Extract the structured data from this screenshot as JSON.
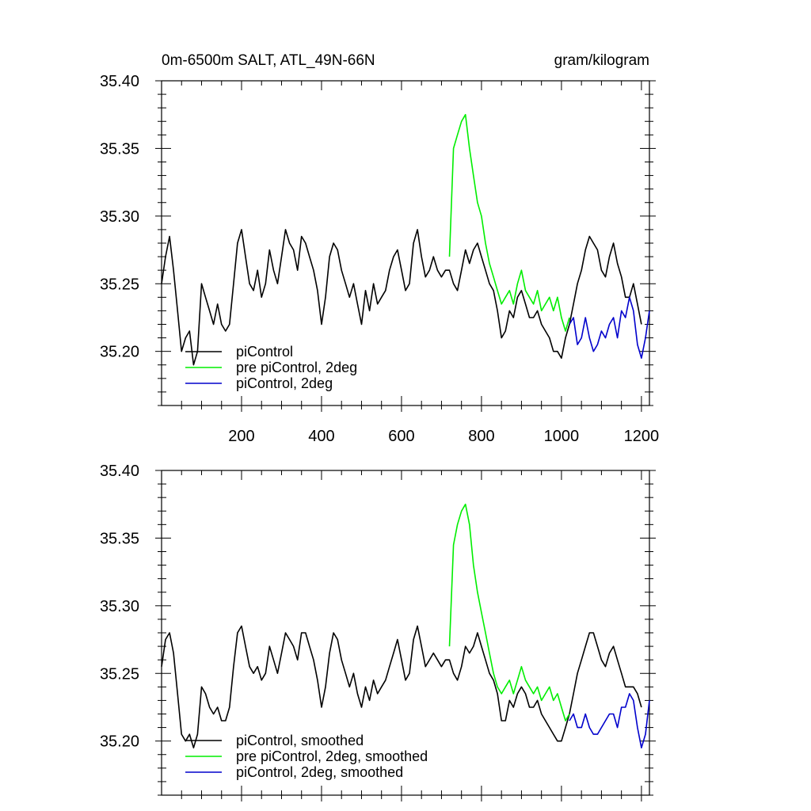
{
  "chart_data": [
    {
      "type": "line",
      "title_left": "0m-6500m SALT, ATL_49N-66N",
      "title_right": "gram/kilogram",
      "xlim": [
        0,
        1220
      ],
      "ylim": [
        35.16,
        35.4
      ],
      "xticks": [
        200,
        400,
        600,
        800,
        1000,
        1200
      ],
      "xtick_labels": [
        "200",
        "400",
        "600",
        "800",
        "1000",
        "1200"
      ],
      "yticks": [
        35.2,
        35.25,
        35.3,
        35.35,
        35.4
      ],
      "ytick_labels": [
        "35.20",
        "35.25",
        "35.30",
        "35.35",
        "35.40"
      ],
      "legend_position": "lower-left",
      "series": [
        {
          "name": "piControl",
          "color": "#000000",
          "x": [
            0,
            10,
            20,
            30,
            40,
            50,
            60,
            70,
            80,
            90,
            100,
            110,
            120,
            130,
            140,
            150,
            160,
            170,
            180,
            190,
            200,
            210,
            220,
            230,
            240,
            250,
            260,
            270,
            280,
            290,
            300,
            310,
            320,
            330,
            340,
            350,
            360,
            370,
            380,
            390,
            400,
            410,
            420,
            430,
            440,
            450,
            460,
            470,
            480,
            490,
            500,
            510,
            520,
            530,
            540,
            550,
            560,
            570,
            580,
            590,
            600,
            610,
            620,
            630,
            640,
            650,
            660,
            670,
            680,
            690,
            700,
            710,
            720,
            730,
            740,
            750,
            760,
            770,
            780,
            790,
            800,
            810,
            820,
            830,
            840,
            850,
            860,
            870,
            880,
            890,
            900,
            910,
            920,
            930,
            940,
            950,
            960,
            970,
            980,
            990,
            1000,
            1010,
            1020,
            1030,
            1040,
            1050,
            1060,
            1070,
            1080,
            1090,
            1100,
            1110,
            1120,
            1130,
            1140,
            1150,
            1160,
            1170,
            1180,
            1190,
            1200
          ],
          "y": [
            35.25,
            35.27,
            35.285,
            35.26,
            35.23,
            35.2,
            35.21,
            35.215,
            35.19,
            35.2,
            35.25,
            35.24,
            35.23,
            35.22,
            35.235,
            35.22,
            35.215,
            35.22,
            35.25,
            35.28,
            35.29,
            35.27,
            35.25,
            35.245,
            35.26,
            35.24,
            35.25,
            35.275,
            35.26,
            35.25,
            35.27,
            35.29,
            35.28,
            35.275,
            35.26,
            35.285,
            35.28,
            35.27,
            35.26,
            35.245,
            35.22,
            35.24,
            35.27,
            35.28,
            35.275,
            35.26,
            35.25,
            35.24,
            35.25,
            35.235,
            35.22,
            35.245,
            35.23,
            35.25,
            35.235,
            35.24,
            35.245,
            35.26,
            35.27,
            35.275,
            35.26,
            35.245,
            35.25,
            35.28,
            35.29,
            35.27,
            35.255,
            35.26,
            35.27,
            35.26,
            35.255,
            35.26,
            35.26,
            35.25,
            35.245,
            35.26,
            35.275,
            35.265,
            35.275,
            35.28,
            35.27,
            35.26,
            35.25,
            35.245,
            35.23,
            35.21,
            35.215,
            35.23,
            35.225,
            35.24,
            35.245,
            35.235,
            35.225,
            35.225,
            35.23,
            35.22,
            35.215,
            35.21,
            35.2,
            35.2,
            35.195,
            35.21,
            35.22,
            35.235,
            35.25,
            35.26,
            35.275,
            35.285,
            35.28,
            35.275,
            35.26,
            35.255,
            35.27,
            35.28,
            35.265,
            35.255,
            35.24,
            35.24,
            35.25,
            35.235,
            35.22
          ]
        },
        {
          "name": "pre piControl, 2deg",
          "color": "#00ee00",
          "x": [
            720,
            730,
            740,
            750,
            760,
            770,
            780,
            790,
            800,
            810,
            820,
            830,
            840,
            850,
            860,
            870,
            880,
            890,
            900,
            910,
            920,
            930,
            940,
            950,
            960,
            970,
            980,
            990,
            1000,
            1010,
            1020
          ],
          "y": [
            35.27,
            35.35,
            35.36,
            35.37,
            35.375,
            35.35,
            35.33,
            35.31,
            35.3,
            35.28,
            35.265,
            35.255,
            35.245,
            35.235,
            35.24,
            35.245,
            35.235,
            35.25,
            35.26,
            35.245,
            35.24,
            35.235,
            35.245,
            35.23,
            35.235,
            35.24,
            35.23,
            35.24,
            35.225,
            35.215,
            35.225
          ]
        },
        {
          "name": "piControl, 2deg",
          "color": "#0000cc",
          "x": [
            1020,
            1030,
            1040,
            1050,
            1060,
            1070,
            1080,
            1090,
            1100,
            1110,
            1120,
            1130,
            1140,
            1150,
            1160,
            1170,
            1180,
            1190,
            1200,
            1210,
            1220
          ],
          "y": [
            35.22,
            35.225,
            35.205,
            35.21,
            35.225,
            35.21,
            35.2,
            35.205,
            35.215,
            35.21,
            35.22,
            35.225,
            35.21,
            35.23,
            35.225,
            35.24,
            35.23,
            35.205,
            35.195,
            35.21,
            35.23
          ]
        }
      ]
    },
    {
      "type": "line",
      "xlim": [
        0,
        1220
      ],
      "ylim": [
        35.16,
        35.4
      ],
      "xticks": [
        200,
        400,
        600,
        800,
        1000,
        1200
      ],
      "yticks": [
        35.2,
        35.25,
        35.3,
        35.35,
        35.4
      ],
      "ytick_labels": [
        "35.20",
        "35.25",
        "35.30",
        "35.35",
        "35.40"
      ],
      "legend_position": "lower-left",
      "series": [
        {
          "name": "piControl, smoothed",
          "color": "#000000",
          "x": [
            0,
            10,
            20,
            30,
            40,
            50,
            60,
            70,
            80,
            90,
            100,
            110,
            120,
            130,
            140,
            150,
            160,
            170,
            180,
            190,
            200,
            210,
            220,
            230,
            240,
            250,
            260,
            270,
            280,
            290,
            300,
            310,
            320,
            330,
            340,
            350,
            360,
            370,
            380,
            390,
            400,
            410,
            420,
            430,
            440,
            450,
            460,
            470,
            480,
            490,
            500,
            510,
            520,
            530,
            540,
            550,
            560,
            570,
            580,
            590,
            600,
            610,
            620,
            630,
            640,
            650,
            660,
            670,
            680,
            690,
            700,
            710,
            720,
            730,
            740,
            750,
            760,
            770,
            780,
            790,
            800,
            810,
            820,
            830,
            840,
            850,
            860,
            870,
            880,
            890,
            900,
            910,
            920,
            930,
            940,
            950,
            960,
            970,
            980,
            990,
            1000,
            1010,
            1020,
            1030,
            1040,
            1050,
            1060,
            1070,
            1080,
            1090,
            1100,
            1110,
            1120,
            1130,
            1140,
            1150,
            1160,
            1170,
            1180,
            1190,
            1200
          ],
          "y": [
            35.255,
            35.275,
            35.28,
            35.265,
            35.235,
            35.205,
            35.2,
            35.205,
            35.195,
            35.205,
            35.24,
            35.235,
            35.225,
            35.22,
            35.225,
            35.215,
            35.215,
            35.225,
            35.255,
            35.28,
            35.285,
            35.27,
            35.255,
            35.25,
            35.255,
            35.245,
            35.25,
            35.27,
            35.26,
            35.25,
            35.265,
            35.28,
            35.275,
            35.27,
            35.26,
            35.28,
            35.28,
            35.27,
            35.26,
            35.245,
            35.225,
            35.24,
            35.265,
            35.28,
            35.275,
            35.26,
            35.25,
            35.24,
            35.25,
            35.235,
            35.225,
            35.24,
            35.23,
            35.245,
            35.235,
            35.24,
            35.245,
            35.255,
            35.265,
            35.275,
            35.26,
            35.245,
            35.25,
            35.275,
            35.285,
            35.27,
            35.255,
            35.26,
            35.265,
            35.26,
            35.255,
            35.26,
            35.26,
            35.25,
            35.245,
            35.255,
            35.27,
            35.265,
            35.27,
            35.28,
            35.27,
            35.26,
            35.25,
            35.245,
            35.235,
            35.215,
            35.215,
            35.23,
            35.225,
            35.235,
            35.24,
            35.235,
            35.225,
            35.225,
            35.23,
            35.22,
            35.215,
            35.21,
            35.205,
            35.2,
            35.2,
            35.21,
            35.22,
            35.235,
            35.25,
            35.26,
            35.27,
            35.28,
            35.28,
            35.27,
            35.26,
            35.255,
            35.265,
            35.27,
            35.26,
            35.25,
            35.24,
            35.24,
            35.24,
            35.235,
            35.225
          ]
        },
        {
          "name": "pre piControl, 2deg, smoothed",
          "color": "#00ee00",
          "x": [
            720,
            730,
            740,
            750,
            760,
            770,
            780,
            790,
            800,
            810,
            820,
            830,
            840,
            850,
            860,
            870,
            880,
            890,
            900,
            910,
            920,
            930,
            940,
            950,
            960,
            970,
            980,
            990,
            1000,
            1010,
            1020
          ],
          "y": [
            35.27,
            35.345,
            35.36,
            35.37,
            35.375,
            35.36,
            35.33,
            35.31,
            35.295,
            35.28,
            35.265,
            35.25,
            35.24,
            35.235,
            35.24,
            35.245,
            35.235,
            35.245,
            35.255,
            35.245,
            35.24,
            35.235,
            35.24,
            35.23,
            35.235,
            35.24,
            35.23,
            35.235,
            35.225,
            35.215,
            35.22
          ]
        },
        {
          "name": "piControl, 2deg, smoothed",
          "color": "#0000cc",
          "x": [
            1020,
            1030,
            1040,
            1050,
            1060,
            1070,
            1080,
            1090,
            1100,
            1110,
            1120,
            1130,
            1140,
            1150,
            1160,
            1170,
            1180,
            1190,
            1200,
            1210,
            1220
          ],
          "y": [
            35.215,
            35.22,
            35.21,
            35.21,
            35.22,
            35.21,
            35.205,
            35.205,
            35.21,
            35.215,
            35.22,
            35.22,
            35.21,
            35.225,
            35.225,
            35.235,
            35.23,
            35.21,
            35.195,
            35.205,
            35.23
          ]
        }
      ]
    }
  ]
}
